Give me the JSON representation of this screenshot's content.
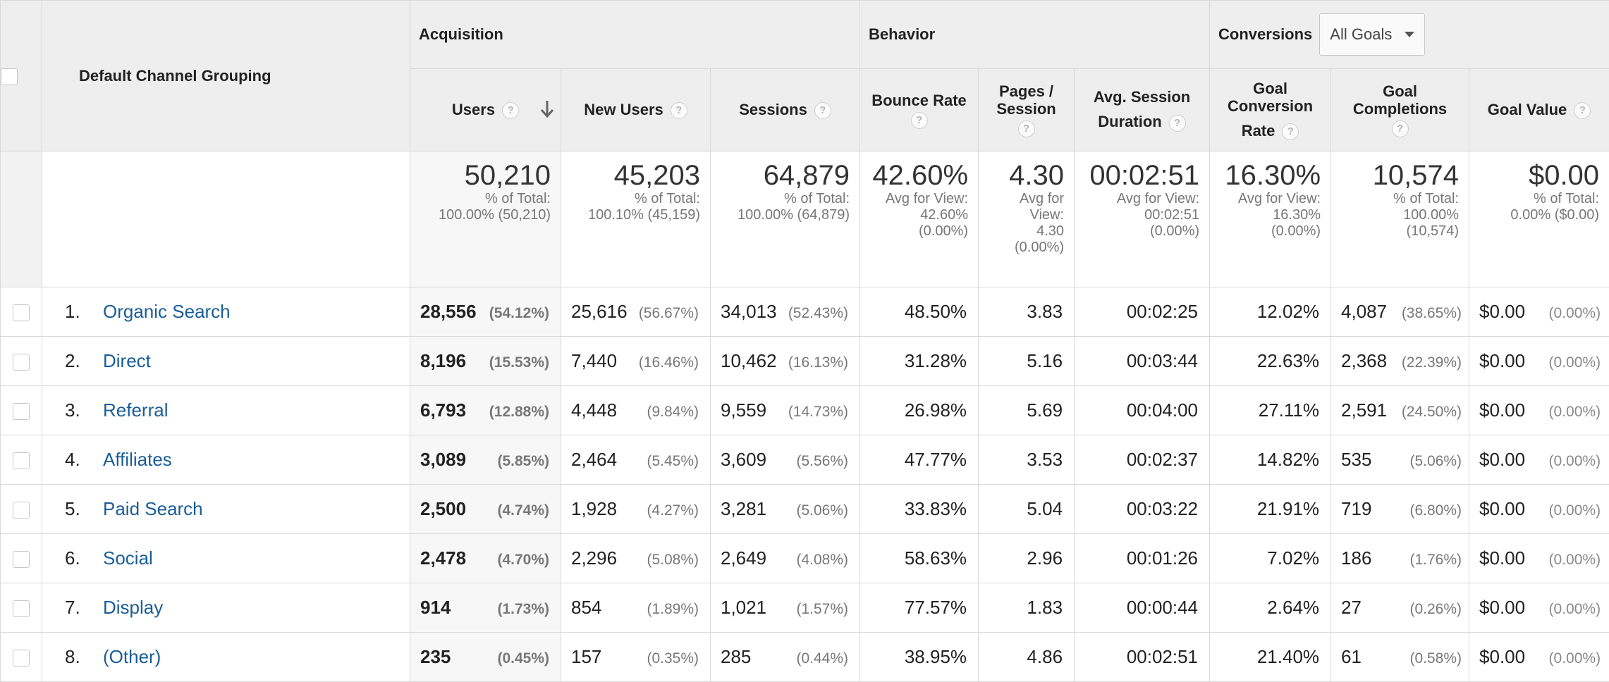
{
  "header": {
    "dimension": "Default Channel Grouping",
    "groups": {
      "acquisition": "Acquisition",
      "behavior": "Behavior",
      "conversions": "Conversions",
      "goal_select": "All Goals"
    },
    "columns": {
      "users": "Users",
      "new_users": "New Users",
      "sessions": "Sessions",
      "bounce_rate": "Bounce Rate",
      "pages_l1": "Pages /",
      "pages_l2": "Session",
      "avg_dur_l1": "Avg. Session",
      "avg_dur_l2": "Duration",
      "gcr_l1": "Goal",
      "gcr_l2": "Conversion",
      "gcr_l3": "Rate",
      "gc_l1": "Goal",
      "gc_l2": "Completions",
      "goal_value": "Goal Value"
    },
    "help_glyph": "?"
  },
  "totals": {
    "users": {
      "value": "50,210",
      "l1": "% of Total:",
      "l2": "100.00% (50,210)"
    },
    "new_users": {
      "value": "45,203",
      "l1": "% of Total:",
      "l2": "100.10% (45,159)"
    },
    "sessions": {
      "value": "64,879",
      "l1": "% of Total:",
      "l2": "100.00% (64,879)"
    },
    "bounce_rate": {
      "value": "42.60%",
      "l1": "Avg for View:",
      "l2": "42.60%",
      "l3": "(0.00%)"
    },
    "pages": {
      "value": "4.30",
      "l1": "Avg for",
      "l2": "View:",
      "l3": "4.30",
      "l4": "(0.00%)"
    },
    "avg_dur": {
      "value": "00:02:51",
      "l1": "Avg for View:",
      "l2": "00:02:51",
      "l3": "(0.00%)"
    },
    "gcr": {
      "value": "16.30%",
      "l1": "Avg for View:",
      "l2": "16.30%",
      "l3": "(0.00%)"
    },
    "gc": {
      "value": "10,574",
      "l1": "% of Total:",
      "l2": "100.00%",
      "l3": "(10,574)"
    },
    "goal_value": {
      "value": "$0.00",
      "l1": "% of Total:",
      "l2": "0.00% ($0.00)"
    }
  },
  "rows": [
    {
      "idx": "1.",
      "channel": "Organic Search",
      "users": "28,556",
      "users_pct": "(54.12%)",
      "new_users": "25,616",
      "new_users_pct": "(56.67%)",
      "sessions": "34,013",
      "sessions_pct": "(52.43%)",
      "bounce": "48.50%",
      "pages": "3.83",
      "dur": "00:02:25",
      "gcr": "12.02%",
      "gc": "4,087",
      "gc_pct": "(38.65%)",
      "gv": "$0.00",
      "gv_pct": "(0.00%)"
    },
    {
      "idx": "2.",
      "channel": "Direct",
      "users": "8,196",
      "users_pct": "(15.53%)",
      "new_users": "7,440",
      "new_users_pct": "(16.46%)",
      "sessions": "10,462",
      "sessions_pct": "(16.13%)",
      "bounce": "31.28%",
      "pages": "5.16",
      "dur": "00:03:44",
      "gcr": "22.63%",
      "gc": "2,368",
      "gc_pct": "(22.39%)",
      "gv": "$0.00",
      "gv_pct": "(0.00%)"
    },
    {
      "idx": "3.",
      "channel": "Referral",
      "users": "6,793",
      "users_pct": "(12.88%)",
      "new_users": "4,448",
      "new_users_pct": "(9.84%)",
      "sessions": "9,559",
      "sessions_pct": "(14.73%)",
      "bounce": "26.98%",
      "pages": "5.69",
      "dur": "00:04:00",
      "gcr": "27.11%",
      "gc": "2,591",
      "gc_pct": "(24.50%)",
      "gv": "$0.00",
      "gv_pct": "(0.00%)"
    },
    {
      "idx": "4.",
      "channel": "Affiliates",
      "users": "3,089",
      "users_pct": "(5.85%)",
      "new_users": "2,464",
      "new_users_pct": "(5.45%)",
      "sessions": "3,609",
      "sessions_pct": "(5.56%)",
      "bounce": "47.77%",
      "pages": "3.53",
      "dur": "00:02:37",
      "gcr": "14.82%",
      "gc": "535",
      "gc_pct": "(5.06%)",
      "gv": "$0.00",
      "gv_pct": "(0.00%)"
    },
    {
      "idx": "5.",
      "channel": "Paid Search",
      "users": "2,500",
      "users_pct": "(4.74%)",
      "new_users": "1,928",
      "new_users_pct": "(4.27%)",
      "sessions": "3,281",
      "sessions_pct": "(5.06%)",
      "bounce": "33.83%",
      "pages": "5.04",
      "dur": "00:03:22",
      "gcr": "21.91%",
      "gc": "719",
      "gc_pct": "(6.80%)",
      "gv": "$0.00",
      "gv_pct": "(0.00%)"
    },
    {
      "idx": "6.",
      "channel": "Social",
      "users": "2,478",
      "users_pct": "(4.70%)",
      "new_users": "2,296",
      "new_users_pct": "(5.08%)",
      "sessions": "2,649",
      "sessions_pct": "(4.08%)",
      "bounce": "58.63%",
      "pages": "2.96",
      "dur": "00:01:26",
      "gcr": "7.02%",
      "gc": "186",
      "gc_pct": "(1.76%)",
      "gv": "$0.00",
      "gv_pct": "(0.00%)"
    },
    {
      "idx": "7.",
      "channel": "Display",
      "users": "914",
      "users_pct": "(1.73%)",
      "new_users": "854",
      "new_users_pct": "(1.89%)",
      "sessions": "1,021",
      "sessions_pct": "(1.57%)",
      "bounce": "77.57%",
      "pages": "1.83",
      "dur": "00:00:44",
      "gcr": "2.64%",
      "gc": "27",
      "gc_pct": "(0.26%)",
      "gv": "$0.00",
      "gv_pct": "(0.00%)"
    },
    {
      "idx": "8.",
      "channel": "(Other)",
      "users": "235",
      "users_pct": "(0.45%)",
      "new_users": "157",
      "new_users_pct": "(0.35%)",
      "sessions": "285",
      "sessions_pct": "(0.44%)",
      "bounce": "38.95%",
      "pages": "4.86",
      "dur": "00:02:51",
      "gcr": "21.40%",
      "gc": "61",
      "gc_pct": "(0.58%)",
      "gv": "$0.00",
      "gv_pct": "(0.00%)"
    }
  ],
  "colors": {
    "link": "#1a5d98",
    "header_bg": "#eeeeee",
    "border": "#d9d9d9"
  },
  "icons": {
    "sort": "sort-down-arrow-icon",
    "help": "help-icon",
    "dropdown": "caret-down-icon"
  }
}
